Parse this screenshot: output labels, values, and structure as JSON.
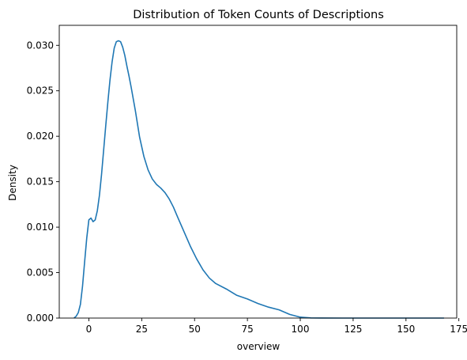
{
  "chart_data": {
    "type": "line",
    "title": "Distribution of Token Counts of Descriptions",
    "xlabel": "overview",
    "ylabel": "Density",
    "xlim": [
      -14,
      174
    ],
    "ylim": [
      0,
      0.0322
    ],
    "xticks": [
      0,
      25,
      50,
      75,
      100,
      125,
      150,
      175
    ],
    "xtick_labels": [
      "0",
      "25",
      "50",
      "75",
      "100",
      "125",
      "150",
      "175"
    ],
    "yticks": [
      0,
      0.005,
      0.01,
      0.015,
      0.02,
      0.025,
      0.03
    ],
    "ytick_labels": [
      "0.000",
      "0.005",
      "0.010",
      "0.015",
      "0.020",
      "0.025",
      "0.030"
    ],
    "grid": false,
    "series": [
      {
        "color": "#1f77b4",
        "x": [
          -7,
          -6,
          -5,
          -4,
          -3,
          -2,
          -1,
          0,
          1,
          2,
          3,
          4,
          5,
          6,
          7,
          8,
          9,
          10,
          11,
          12,
          13,
          14,
          15,
          16,
          17,
          18,
          19,
          20,
          22,
          24,
          26,
          28,
          30,
          32,
          34,
          36,
          38,
          40,
          42,
          45,
          48,
          51,
          54,
          57,
          60,
          65,
          70,
          75,
          80,
          85,
          90,
          95,
          100,
          105,
          110,
          120,
          130,
          150,
          168
        ],
        "y": [
          0,
          0.0002,
          0.0006,
          0.0015,
          0.0035,
          0.0062,
          0.0088,
          0.0108,
          0.011,
          0.0106,
          0.0108,
          0.0118,
          0.0135,
          0.0158,
          0.0185,
          0.0212,
          0.0238,
          0.0262,
          0.0282,
          0.0297,
          0.0304,
          0.0305,
          0.0304,
          0.0298,
          0.0289,
          0.0277,
          0.0266,
          0.0254,
          0.0228,
          0.0199,
          0.0178,
          0.0163,
          0.0153,
          0.0147,
          0.0143,
          0.0138,
          0.0131,
          0.0122,
          0.0111,
          0.0095,
          0.0079,
          0.0065,
          0.0053,
          0.0044,
          0.0038,
          0.0032,
          0.0025,
          0.0021,
          0.0016,
          0.0012,
          0.0009,
          0.0004,
          0.0001,
          2e-05,
          5e-06,
          0,
          0,
          0,
          0
        ]
      }
    ]
  }
}
